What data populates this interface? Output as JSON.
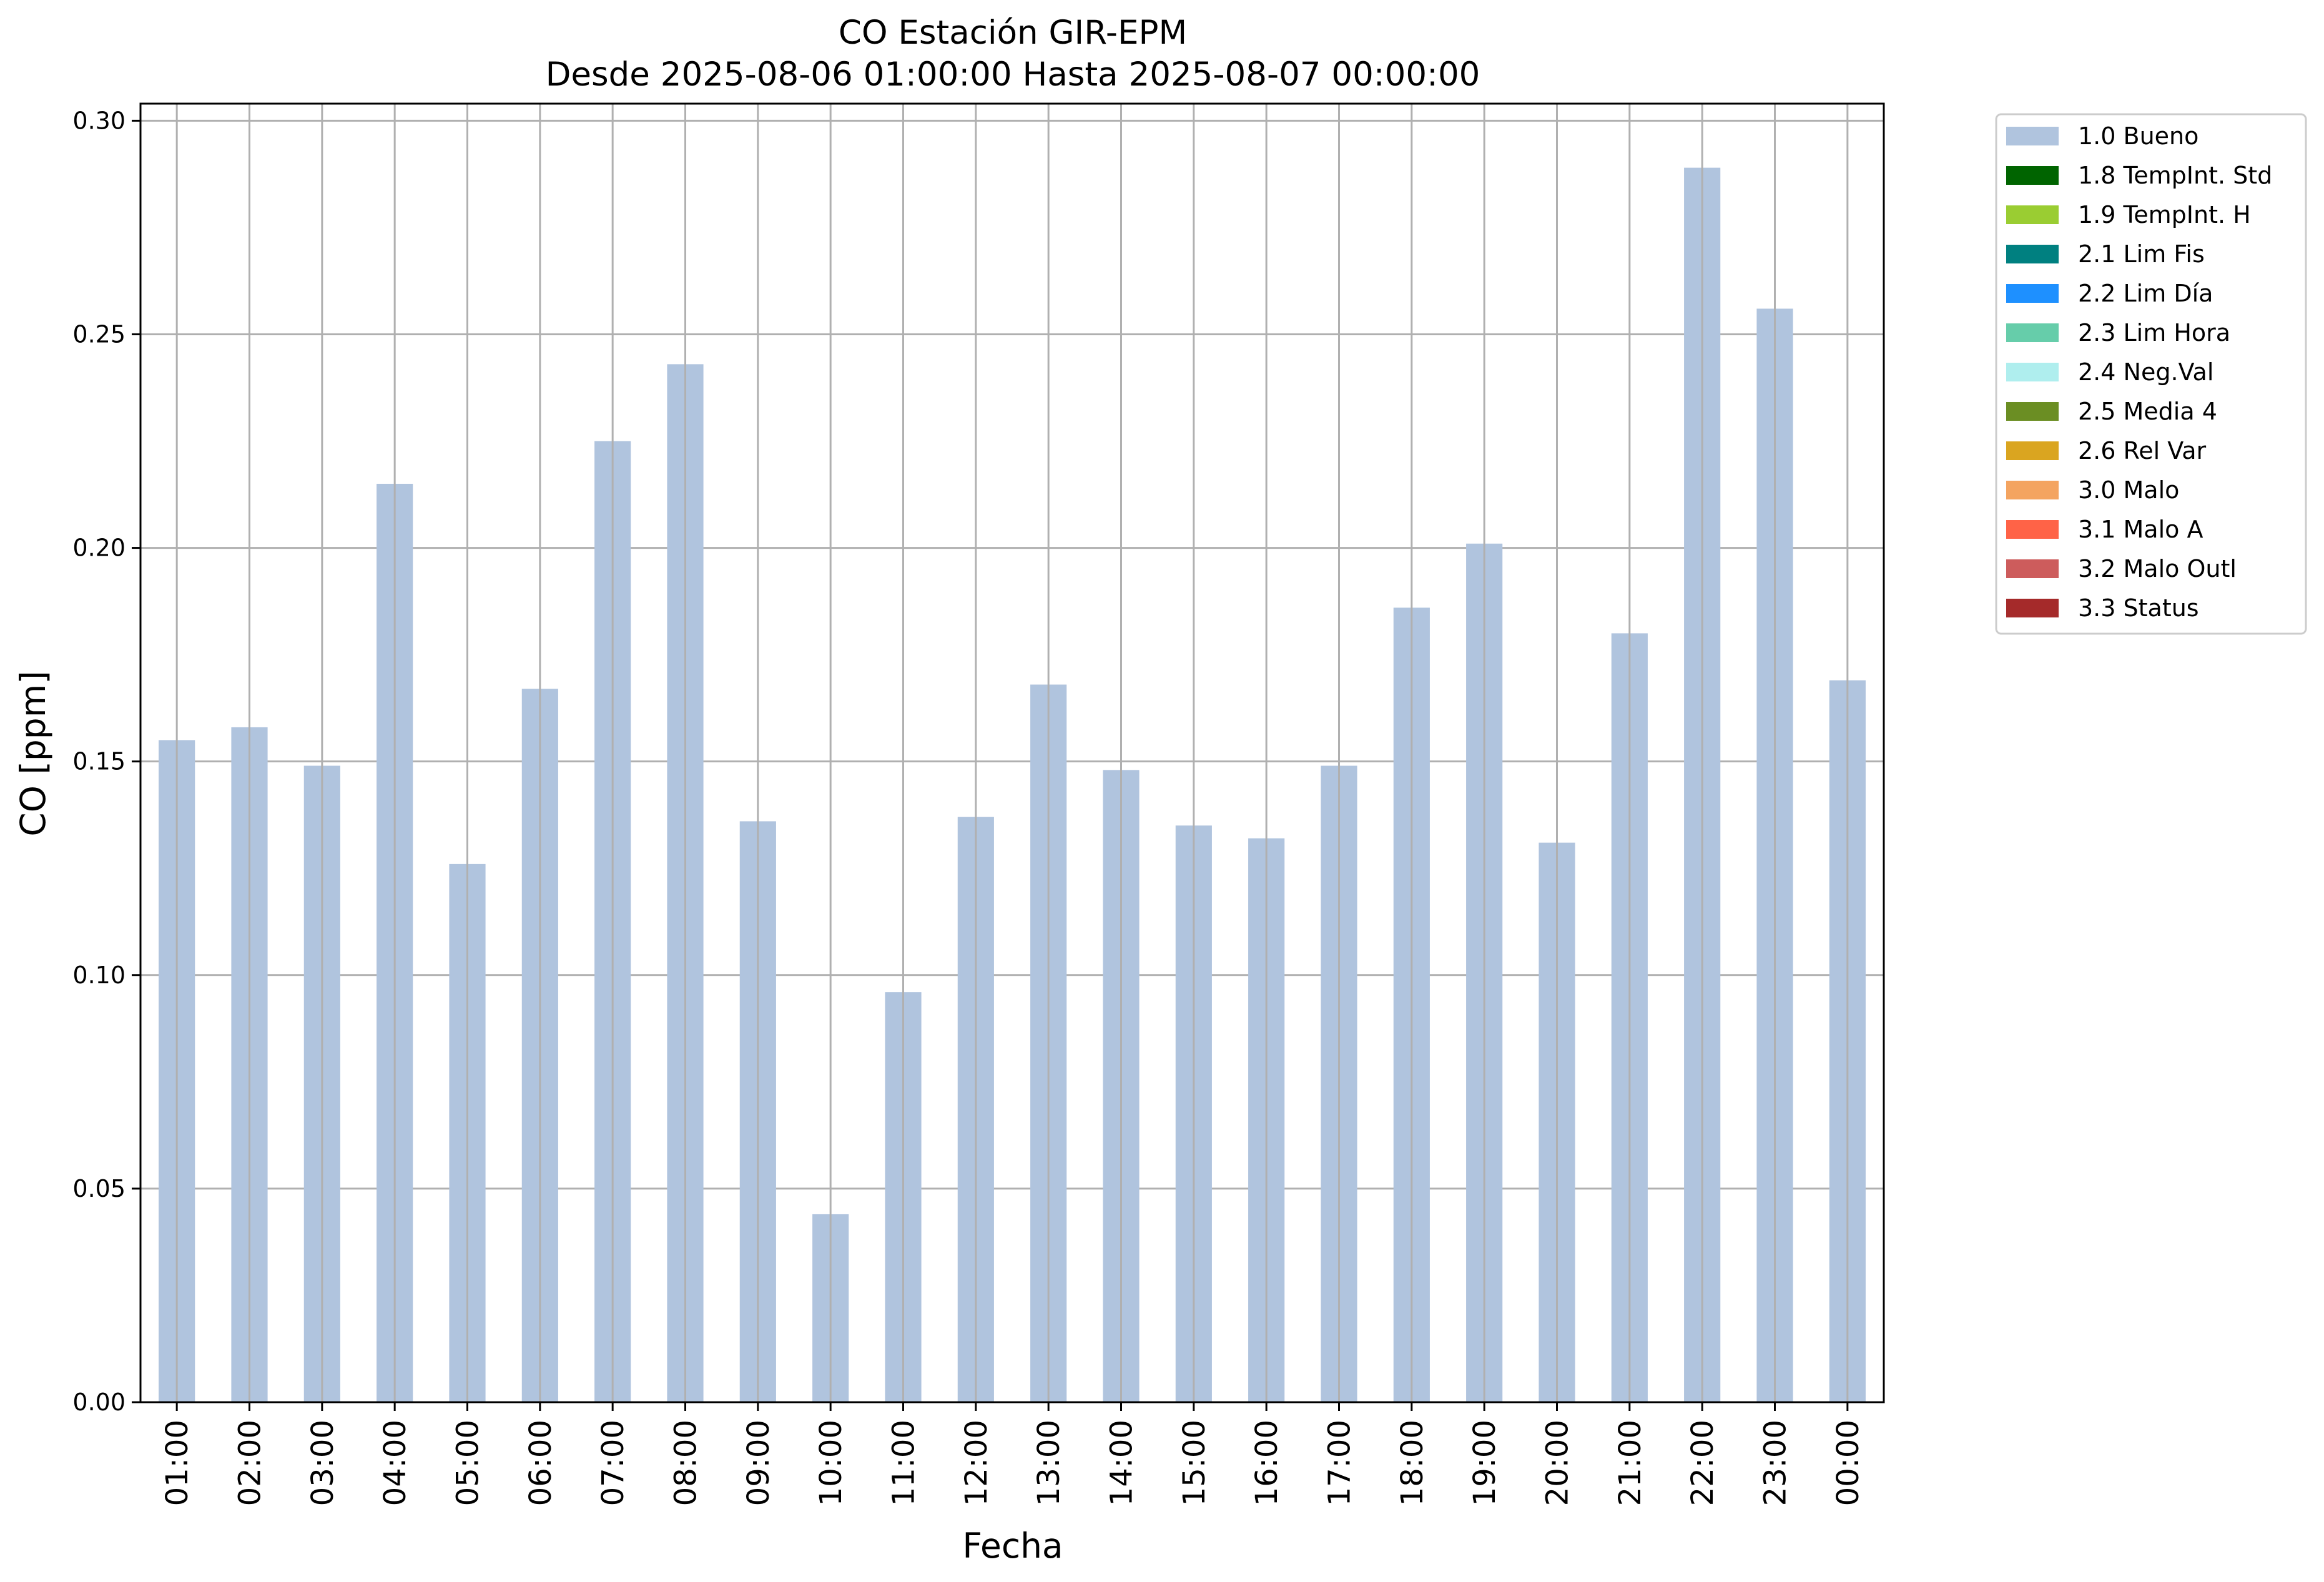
{
  "chart_data": {
    "type": "bar",
    "title": "CO Estación GIR-EPM",
    "subtitle": "Desde 2025-08-06 01:00:00 Hasta 2025-08-07 00:00:00",
    "xlabel": "Fecha",
    "ylabel": "CO [ppm]",
    "ylim": [
      0,
      0.304
    ],
    "yticks": [
      "0.00",
      "0.05",
      "0.10",
      "0.15",
      "0.20",
      "0.25",
      "0.30"
    ],
    "grid": true,
    "legend_position": "outside-top-right",
    "categories": [
      "01:00",
      "02:00",
      "03:00",
      "04:00",
      "05:00",
      "06:00",
      "07:00",
      "08:00",
      "09:00",
      "10:00",
      "11:00",
      "12:00",
      "13:00",
      "14:00",
      "15:00",
      "16:00",
      "17:00",
      "18:00",
      "19:00",
      "20:00",
      "21:00",
      "22:00",
      "23:00",
      "00:00"
    ],
    "series": [
      {
        "name": "1.0 Bueno",
        "color": "#b0c4de",
        "values": [
          0.155,
          0.158,
          0.149,
          0.215,
          0.126,
          0.167,
          0.225,
          0.243,
          0.136,
          0.044,
          0.096,
          0.137,
          0.168,
          0.148,
          0.135,
          0.132,
          0.149,
          0.186,
          0.201,
          0.131,
          0.18,
          0.289,
          0.256,
          0.169
        ]
      }
    ],
    "legend": [
      {
        "label": "1.0 Bueno",
        "color": "#b0c4de"
      },
      {
        "label": "1.8 TempInt. Std",
        "color": "#006400"
      },
      {
        "label": "1.9 TempInt. H",
        "color": "#9acd32"
      },
      {
        "label": "2.1 Lim Fis",
        "color": "#008080"
      },
      {
        "label": "2.2 Lim Día",
        "color": "#1e90ff"
      },
      {
        "label": "2.3 Lim Hora",
        "color": "#66cdaa"
      },
      {
        "label": "2.4 Neg.Val",
        "color": "#afeeee"
      },
      {
        "label": "2.5 Media 4",
        "color": "#6b8e23"
      },
      {
        "label": "2.6 Rel Var",
        "color": "#daa520"
      },
      {
        "label": "3.0 Malo",
        "color": "#f4a460"
      },
      {
        "label": "3.1 Malo A",
        "color": "#ff6347"
      },
      {
        "label": "3.2 Malo Outl",
        "color": "#cd5c5c"
      },
      {
        "label": "3.3 Status",
        "color": "#a52a2a"
      }
    ]
  }
}
